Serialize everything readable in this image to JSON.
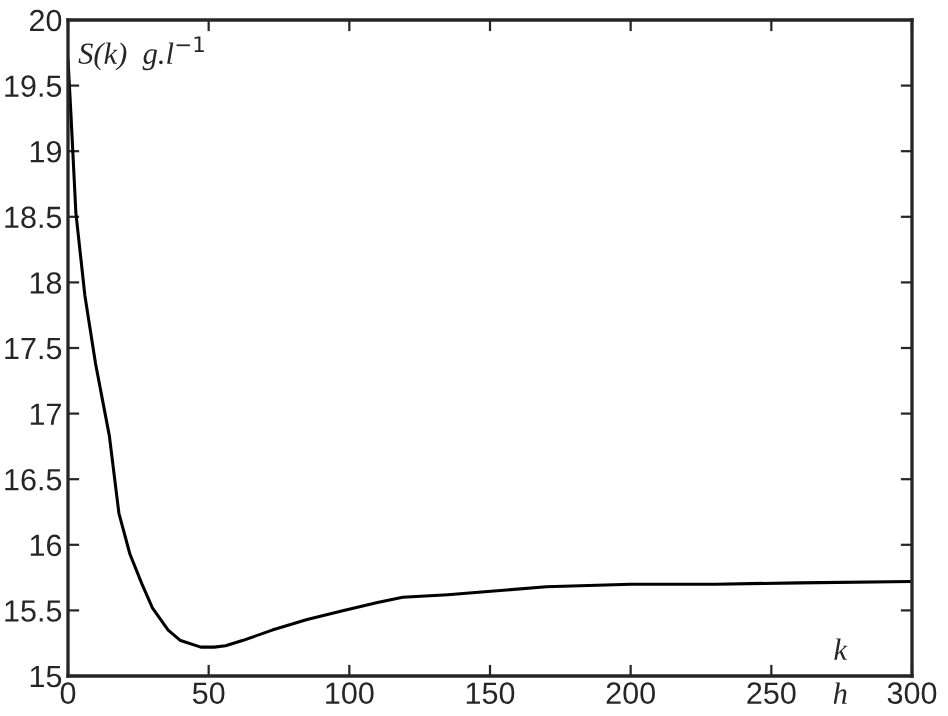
{
  "chart_data": {
    "type": "line",
    "ylabel": "S(k)  g.l$^{−1}$",
    "annotations": [
      "k",
      "h"
    ],
    "x": [
      0,
      1,
      2.8,
      6,
      9.8,
      14.7,
      18.1,
      22,
      26.3,
      30,
      35.6,
      40,
      47.2,
      52,
      56,
      62,
      72.6,
      85,
      98,
      110,
      119,
      135,
      147,
      170,
      200,
      230,
      260,
      300
    ],
    "series": [
      {
        "color": "#000000",
        "values": [
          19.7,
          19.3,
          18.53,
          17.9,
          17.38,
          16.83,
          16.24,
          15.93,
          15.7,
          15.52,
          15.35,
          15.27,
          15.22,
          15.22,
          15.23,
          15.27,
          15.35,
          15.43,
          15.5,
          15.56,
          15.6,
          15.62,
          15.64,
          15.68,
          15.7,
          15.7,
          15.71,
          15.72
        ]
      }
    ],
    "xlim": [
      0,
      300
    ],
    "ylim": [
      15,
      20
    ],
    "xticks": [
      0,
      50,
      100,
      150,
      200,
      250,
      300
    ],
    "yticks": [
      15,
      15.5,
      16,
      16.5,
      17,
      17.5,
      18,
      18.5,
      19,
      19.5,
      20
    ],
    "grid": false,
    "legend": false,
    "marker": "none",
    "line_style": "solid"
  }
}
